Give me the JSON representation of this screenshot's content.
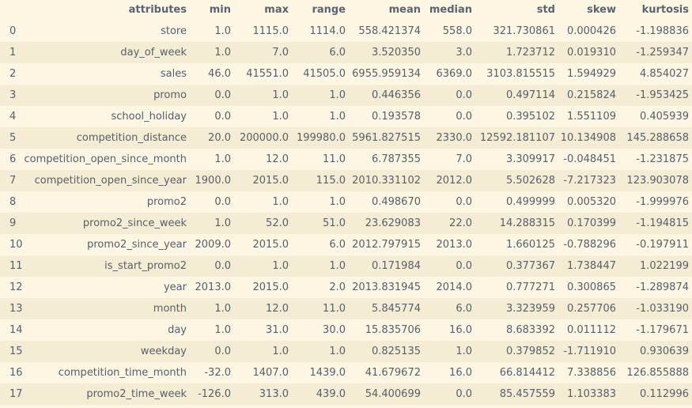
{
  "table": {
    "columns": [
      "",
      "attributes",
      "min",
      "max",
      "range",
      "mean",
      "median",
      "std",
      "skew",
      "kurtosis"
    ],
    "rows": [
      [
        "0",
        "store",
        "1.0",
        "1115.0",
        "1114.0",
        "558.421374",
        "558.0",
        "321.730861",
        "0.000426",
        "-1.198836"
      ],
      [
        "1",
        "day_of_week",
        "1.0",
        "7.0",
        "6.0",
        "3.520350",
        "3.0",
        "1.723712",
        "0.019310",
        "-1.259347"
      ],
      [
        "2",
        "sales",
        "46.0",
        "41551.0",
        "41505.0",
        "6955.959134",
        "6369.0",
        "3103.815515",
        "1.594929",
        "4.854027"
      ],
      [
        "3",
        "promo",
        "0.0",
        "1.0",
        "1.0",
        "0.446356",
        "0.0",
        "0.497114",
        "0.215824",
        "-1.953425"
      ],
      [
        "4",
        "school_holiday",
        "0.0",
        "1.0",
        "1.0",
        "0.193578",
        "0.0",
        "0.395102",
        "1.551109",
        "0.405939"
      ],
      [
        "5",
        "competition_distance",
        "20.0",
        "200000.0",
        "199980.0",
        "5961.827515",
        "2330.0",
        "12592.181107",
        "10.134908",
        "145.288658"
      ],
      [
        "6",
        "competition_open_since_month",
        "1.0",
        "12.0",
        "11.0",
        "6.787355",
        "7.0",
        "3.309917",
        "-0.048451",
        "-1.231875"
      ],
      [
        "7",
        "competition_open_since_year",
        "1900.0",
        "2015.0",
        "115.0",
        "2010.331102",
        "2012.0",
        "5.502628",
        "-7.217323",
        "123.903078"
      ],
      [
        "8",
        "promo2",
        "0.0",
        "1.0",
        "1.0",
        "0.498670",
        "0.0",
        "0.499999",
        "0.005320",
        "-1.999976"
      ],
      [
        "9",
        "promo2_since_week",
        "1.0",
        "52.0",
        "51.0",
        "23.629083",
        "22.0",
        "14.288315",
        "0.170399",
        "-1.194815"
      ],
      [
        "10",
        "promo2_since_year",
        "2009.0",
        "2015.0",
        "6.0",
        "2012.797915",
        "2013.0",
        "1.660125",
        "-0.788296",
        "-0.197911"
      ],
      [
        "11",
        "is_start_promo2",
        "0.0",
        "1.0",
        "1.0",
        "0.171984",
        "0.0",
        "0.377367",
        "1.738447",
        "1.022199"
      ],
      [
        "12",
        "year",
        "2013.0",
        "2015.0",
        "2.0",
        "2013.831945",
        "2014.0",
        "0.777271",
        "0.300865",
        "-1.289874"
      ],
      [
        "13",
        "month",
        "1.0",
        "12.0",
        "11.0",
        "5.845774",
        "6.0",
        "3.323959",
        "0.257706",
        "-1.033190"
      ],
      [
        "14",
        "day",
        "1.0",
        "31.0",
        "30.0",
        "15.835706",
        "16.0",
        "8.683392",
        "0.011112",
        "-1.179671"
      ],
      [
        "15",
        "weekday",
        "0.0",
        "1.0",
        "1.0",
        "0.825135",
        "1.0",
        "0.379852",
        "-1.711910",
        "0.930639"
      ],
      [
        "16",
        "competition_time_month",
        "-32.0",
        "1407.0",
        "1439.0",
        "41.679672",
        "16.0",
        "66.814412",
        "7.338856",
        "126.855888"
      ],
      [
        "17",
        "promo2_time_week",
        "-126.0",
        "313.0",
        "439.0",
        "54.400699",
        "0.0",
        "85.457559",
        "1.103383",
        "0.112996"
      ]
    ]
  },
  "colors": {
    "background": "#fcf6e3",
    "row_alt": "#f4edd3",
    "text": "#55606e"
  }
}
